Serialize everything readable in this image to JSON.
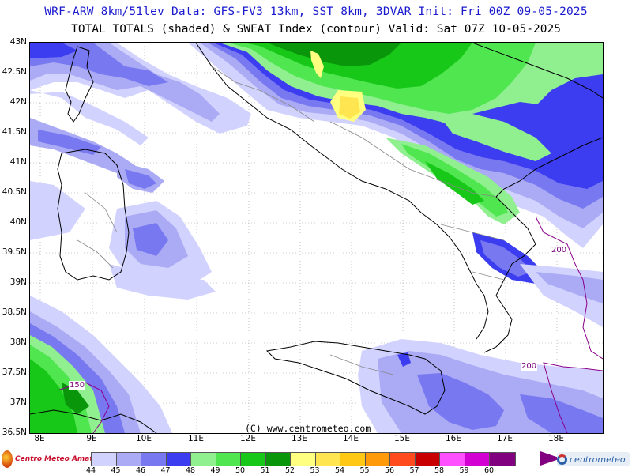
{
  "header": {
    "line1": "WRF-ARW 8km/51lev  Data: GFS-FV3 13km, SST 8km, 3DVAR  Init: Fri 00Z 09-05-2025",
    "line2": "TOTAL TOTALS (shaded) & SWEAT Index (contour)  Valid: Sat 07Z 10-05-2025"
  },
  "axes": {
    "lat_labels": [
      "43N",
      "42.5N",
      "42N",
      "41.5N",
      "41N",
      "40.5N",
      "40N",
      "39.5N",
      "39N",
      "38.5N",
      "38N",
      "37.5N",
      "37N",
      "36.5N"
    ],
    "lon_labels": [
      "8E",
      "9E",
      "10E",
      "11E",
      "12E",
      "13E",
      "14E",
      "15E",
      "16E",
      "17E",
      "18E"
    ]
  },
  "copyright": "(C) www.centrometeo.com",
  "contours": {
    "label_a": "200",
    "label_b": "200",
    "label_c": "150"
  },
  "colorbar": {
    "colors": [
      "#d2d2ff",
      "#aaaaf5",
      "#7878f0",
      "#3c3cf0",
      "#90f090",
      "#50e650",
      "#18c818",
      "#0a960a",
      "#ffff80",
      "#ffe650",
      "#ffc814",
      "#ff9a0a",
      "#ff4b1e",
      "#c80000",
      "#ff50ff",
      "#d200d2",
      "#800080"
    ],
    "ticks": [
      "44",
      "45",
      "46",
      "47",
      "48",
      "49",
      "50",
      "51",
      "52",
      "53",
      "54",
      "55",
      "56",
      "57",
      "58",
      "59",
      "60"
    ]
  },
  "logos": {
    "left": "Centro Meteo Amatori",
    "right": "centrometeo"
  }
}
